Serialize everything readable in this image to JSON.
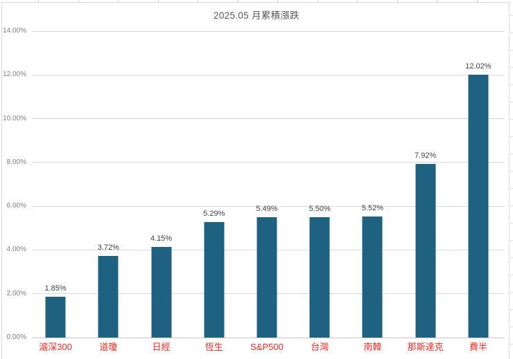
{
  "chart_data": {
    "type": "bar",
    "title": "2025.05 月累積漲跌",
    "categories": [
      "滬深300",
      "道瓊",
      "日經",
      "恆生",
      "S&P500",
      "台灣",
      "南韓",
      "那斯達克",
      "費半"
    ],
    "values": [
      1.85,
      3.72,
      4.15,
      5.29,
      5.49,
      5.5,
      5.52,
      7.92,
      12.02
    ],
    "value_labels": [
      "1.85%",
      "3.72%",
      "4.15%",
      "5.29%",
      "5.49%",
      "5.50%",
      "5.52%",
      "7.92%",
      "12.02%"
    ],
    "xlabel": "",
    "ylabel": "",
    "ylim": [
      0,
      14
    ],
    "yticks": {
      "values": [
        0,
        2,
        4,
        6,
        8,
        10,
        12,
        14
      ],
      "labels": [
        "0.00%",
        "2.00%",
        "4.00%",
        "6.00%",
        "8.00%",
        "10.00%",
        "12.00%",
        "14.00%"
      ]
    },
    "grid": "horizontal",
    "legend": "none",
    "colors": {
      "bar": "#1f6180",
      "title": "#595959",
      "axis_tick_label": "#7f7f7f",
      "value_label": "#3f3f3f",
      "category_label": "#ee2c24",
      "gridline": "#d9d9d9"
    }
  }
}
